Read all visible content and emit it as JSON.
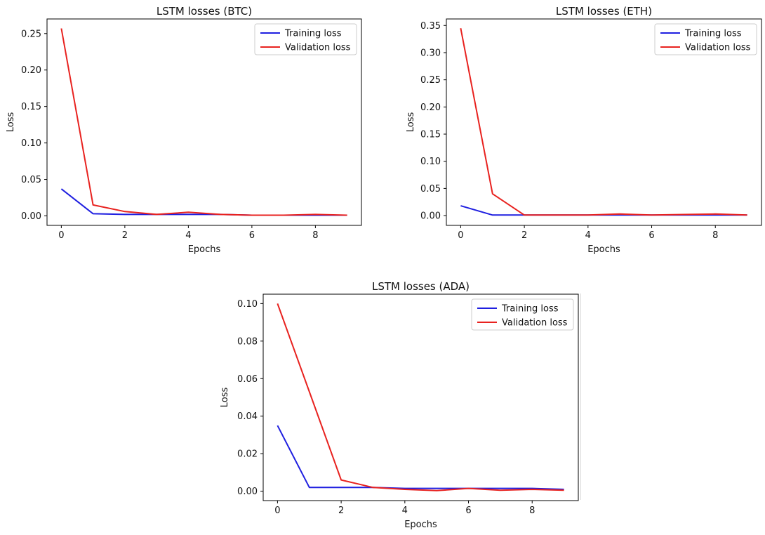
{
  "chart_data": [
    {
      "type": "line",
      "title": "LSTM losses (BTC)",
      "xlabel": "Epochs",
      "ylabel": "Loss",
      "x": [
        0,
        1,
        2,
        3,
        4,
        5,
        6,
        7,
        8,
        9
      ],
      "xlim": [
        -0.45,
        9.45
      ],
      "ylim": [
        -0.013,
        0.27
      ],
      "xticks": [
        0,
        2,
        4,
        6,
        8
      ],
      "yticks": [
        0.0,
        0.05,
        0.1,
        0.15,
        0.2,
        0.25
      ],
      "ytick_labels": [
        "0.00",
        "0.05",
        "0.10",
        "0.15",
        "0.20",
        "0.25"
      ],
      "legend": "top-right",
      "grid": false,
      "series": [
        {
          "name": "Training loss",
          "color": "#1f1fe0",
          "values": [
            0.037,
            0.003,
            0.002,
            0.002,
            0.002,
            0.002,
            0.001,
            0.001,
            0.001,
            0.001
          ]
        },
        {
          "name": "Validation loss",
          "color": "#e8221f",
          "values": [
            0.257,
            0.015,
            0.006,
            0.002,
            0.005,
            0.002,
            0.001,
            0.001,
            0.002,
            0.001
          ]
        }
      ]
    },
    {
      "type": "line",
      "title": "LSTM losses (ETH)",
      "xlabel": "Epochs",
      "ylabel": "Loss",
      "x": [
        0,
        1,
        2,
        3,
        4,
        5,
        6,
        7,
        8,
        9
      ],
      "xlim": [
        -0.45,
        9.45
      ],
      "ylim": [
        -0.018,
        0.362
      ],
      "xticks": [
        0,
        2,
        4,
        6,
        8
      ],
      "yticks": [
        0.0,
        0.05,
        0.1,
        0.15,
        0.2,
        0.25,
        0.3,
        0.35
      ],
      "ytick_labels": [
        "0.00",
        "0.05",
        "0.10",
        "0.15",
        "0.20",
        "0.25",
        "0.30",
        "0.35"
      ],
      "legend": "top-right",
      "grid": false,
      "series": [
        {
          "name": "Training loss",
          "color": "#1f1fe0",
          "values": [
            0.018,
            0.001,
            0.001,
            0.001,
            0.001,
            0.001,
            0.001,
            0.001,
            0.001,
            0.001
          ]
        },
        {
          "name": "Validation loss",
          "color": "#e8221f",
          "values": [
            0.345,
            0.04,
            0.001,
            0.001,
            0.001,
            0.003,
            0.001,
            0.002,
            0.003,
            0.001
          ]
        }
      ]
    },
    {
      "type": "line",
      "title": "LSTM losses (ADA)",
      "xlabel": "Epochs",
      "ylabel": "Loss",
      "x": [
        0,
        1,
        2,
        3,
        4,
        5,
        6,
        7,
        8,
        9
      ],
      "xlim": [
        -0.45,
        9.45
      ],
      "ylim": [
        -0.005,
        0.105
      ],
      "xticks": [
        0,
        2,
        4,
        6,
        8
      ],
      "yticks": [
        0.0,
        0.02,
        0.04,
        0.06,
        0.08,
        0.1
      ],
      "ytick_labels": [
        "0.00",
        "0.02",
        "0.04",
        "0.06",
        "0.08",
        "0.10"
      ],
      "legend": "top-right",
      "grid": false,
      "series": [
        {
          "name": "Training loss",
          "color": "#1f1fe0",
          "values": [
            0.035,
            0.002,
            0.002,
            0.002,
            0.0015,
            0.0015,
            0.0015,
            0.0015,
            0.0015,
            0.001
          ]
        },
        {
          "name": "Validation loss",
          "color": "#e8221f",
          "values": [
            0.1,
            0.053,
            0.006,
            0.002,
            0.001,
            0.0003,
            0.0015,
            0.0005,
            0.001,
            0.0005
          ]
        }
      ]
    }
  ]
}
